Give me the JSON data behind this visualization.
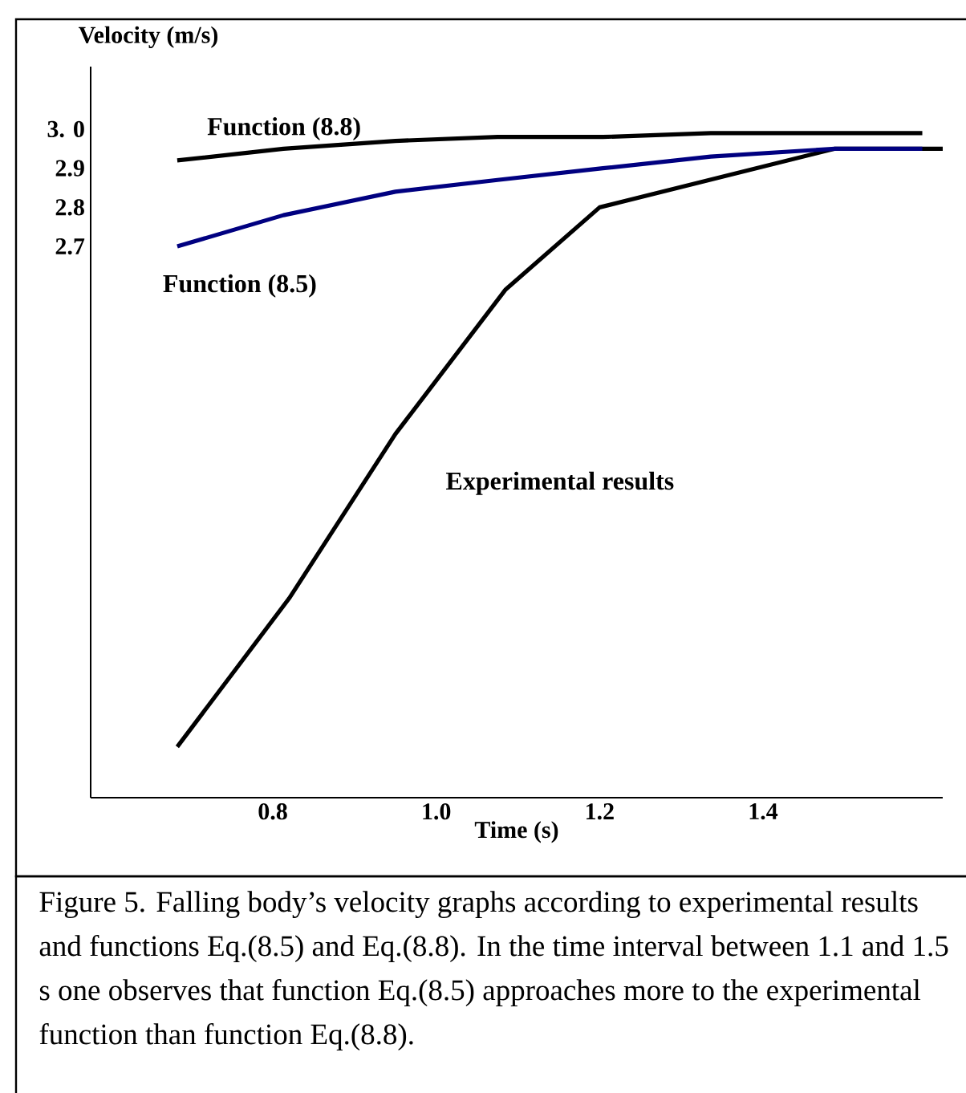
{
  "chart_data": {
    "type": "line",
    "xlabel": "Time (s)",
    "ylabel": "Velocity (m/s)",
    "xlim": [
      0.577,
      1.62
    ],
    "ylim": [
      1.29,
      3.16
    ],
    "xticks": [
      0.8,
      {
        "value": 1.0,
        "label": "1.0"
      },
      1.2,
      1.4
    ],
    "yticks": [
      {
        "value": 3.0,
        "label": "3. 0"
      },
      2.9,
      2.8,
      2.7
    ],
    "series": [
      {
        "name": "Function (8.8)",
        "color": "#000000",
        "x": [
          0.683,
          0.813,
          0.95,
          1.075,
          1.204,
          1.336,
          1.488,
          1.595
        ],
        "values": [
          2.92,
          2.95,
          2.97,
          2.98,
          2.98,
          2.99,
          2.99,
          2.99
        ]
      },
      {
        "name": "Function (8.5)",
        "color": "#000080",
        "x": [
          0.683,
          0.813,
          0.95,
          1.075,
          1.204,
          1.336,
          1.488,
          1.595
        ],
        "values": [
          2.7,
          2.78,
          2.84,
          2.87,
          2.9,
          2.93,
          2.95,
          2.95
        ]
      },
      {
        "name": "Experimental results",
        "color": "#000000",
        "x": [
          0.683,
          0.82,
          0.95,
          1.085,
          1.2,
          1.488,
          1.62
        ],
        "values": [
          1.42,
          1.8,
          2.22,
          2.59,
          2.8,
          2.95,
          2.95
        ]
      }
    ],
    "annotations": [
      "Figure 5. Falling body’s velocity graphs according to experimental results and functions Eq.(8.5) and Eq.(8.8). In the time interval between 1.1 and 1.5 s one observes that function Eq.(8.5) approaches more to the experimental function than function Eq.(8.8)."
    ]
  }
}
